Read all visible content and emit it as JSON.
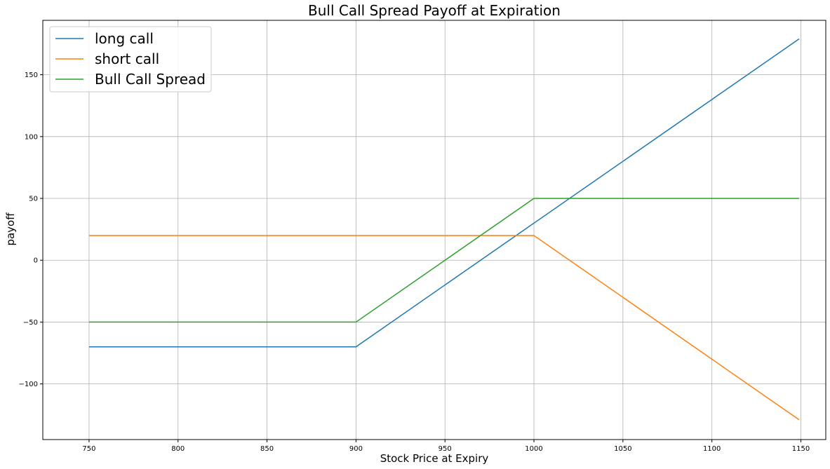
{
  "chart_data": {
    "type": "line",
    "title": "Bull Call Spread Payoff at Expiration",
    "xlabel": "Stock Price at Expiry",
    "ylabel": "payoff",
    "xlim": [
      724,
      1164
    ],
    "ylim": [
      -145,
      194
    ],
    "xticks": [
      750,
      800,
      850,
      900,
      950,
      1000,
      1050,
      1100,
      1150
    ],
    "yticks": [
      -100,
      -50,
      0,
      50,
      100,
      150
    ],
    "grid": true,
    "legend_position": "top-left",
    "series": [
      {
        "name": "long call",
        "color": "#1f77b4",
        "x": [
          750,
          900,
          1000,
          1149
        ],
        "y": [
          -70,
          -70,
          30,
          179
        ]
      },
      {
        "name": "short call",
        "color": "#ff7f0e",
        "x": [
          750,
          900,
          1000,
          1149
        ],
        "y": [
          20,
          20,
          20,
          -129
        ]
      },
      {
        "name": "Bull Call Spread",
        "color": "#2ca02c",
        "x": [
          750,
          900,
          1000,
          1149
        ],
        "y": [
          -50,
          -50,
          50,
          50
        ]
      }
    ]
  }
}
